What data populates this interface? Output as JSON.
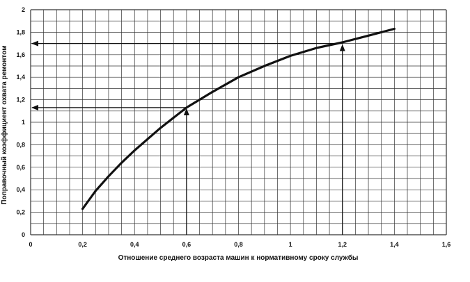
{
  "chart_data": {
    "type": "line",
    "xlabel": "Отношение среднего возраста машин к нормативному сроку службы",
    "ylabel": "Поправочный коэффициент охвата ремонтом",
    "xlim": [
      0,
      1.6
    ],
    "ylim": [
      0,
      2
    ],
    "x_ticks": [
      "0",
      "0,2",
      "0,4",
      "0,6",
      "0,8",
      "1",
      "1,2",
      "1,4",
      "1,6"
    ],
    "y_ticks": [
      "0",
      "0,2",
      "0,4",
      "0,6",
      "0,8",
      "1",
      "1,2",
      "1,4",
      "1,6",
      "1,8",
      "2"
    ],
    "grid": true,
    "series": [
      {
        "x": [
          0.2,
          0.25,
          0.3,
          0.35,
          0.4,
          0.45,
          0.5,
          0.55,
          0.6,
          0.7,
          0.8,
          0.9,
          1.0,
          1.1,
          1.2,
          1.3,
          1.4
        ],
        "y": [
          0.23,
          0.39,
          0.52,
          0.64,
          0.75,
          0.85,
          0.95,
          1.04,
          1.13,
          1.27,
          1.4,
          1.5,
          1.59,
          1.66,
          1.71,
          1.77,
          1.83
        ]
      }
    ],
    "annotations": [
      {
        "x": 0.6,
        "y": 1.13
      },
      {
        "x": 1.2,
        "y": 1.7
      }
    ],
    "colors": {
      "line": "#111111",
      "grid": "#333333",
      "background": "#ffffff"
    }
  }
}
